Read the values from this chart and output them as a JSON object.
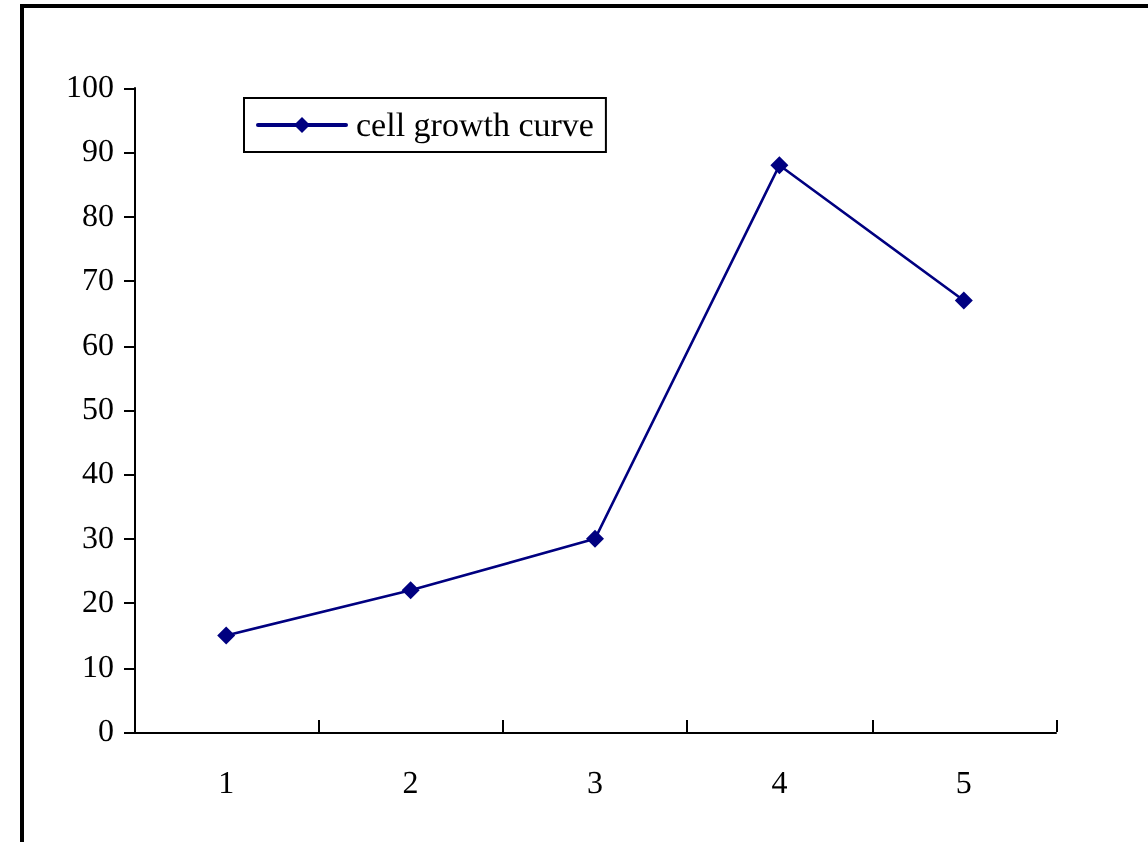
{
  "chart_data": {
    "type": "line",
    "categories": [
      "1",
      "2",
      "3",
      "4",
      "5"
    ],
    "series": [
      {
        "name": "cell growth curve",
        "color": "#000080",
        "values": [
          15,
          22,
          30,
          88,
          67
        ]
      }
    ],
    "ylim": [
      0,
      100
    ],
    "yticks": [
      0,
      10,
      20,
      30,
      40,
      50,
      60,
      70,
      80,
      90,
      100
    ],
    "grid": false,
    "legend": "top left",
    "marker": "diamond",
    "line_style": "solid"
  }
}
